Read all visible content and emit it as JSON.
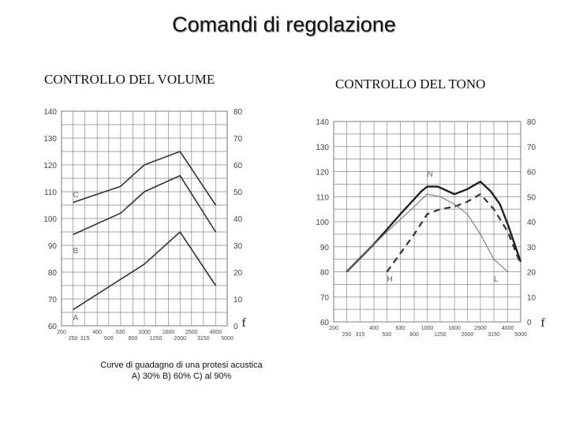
{
  "title": "Comandi di regolazione",
  "volume_heading": "CONTROLLO DEL VOLUME",
  "tone_heading": "CONTROLLO DEL TONO",
  "caption_line1": "Curve di guadagno di una protesi acustica",
  "caption_line2": "A) 30% B) 60% C) al 90%",
  "chart_data": [
    {
      "type": "line",
      "id": "volume",
      "title": "CONTROLLO DEL VOLUME",
      "xlabel": "f",
      "ylabel": "",
      "x_scale": "log",
      "x_ticks_top": [
        "200",
        "400",
        "630",
        "1000",
        "1600",
        "2500",
        "4000"
      ],
      "x_ticks_bottom": [
        "250",
        "315",
        "500",
        "800",
        "1250",
        "2000",
        "3150",
        "5000"
      ],
      "y_left_ticks": [
        "60",
        "70",
        "80",
        "90",
        "100",
        "110",
        "120",
        "130",
        "140"
      ],
      "y_right_ticks": [
        "0",
        "10",
        "20",
        "30",
        "40",
        "50",
        "60",
        "70",
        "80"
      ],
      "ylim": [
        60,
        140
      ],
      "grid": true,
      "series": [
        {
          "name": "A",
          "x": [
            250,
            1000,
            2000,
            4000
          ],
          "values": [
            66,
            83,
            95,
            75
          ],
          "style": "solid",
          "label_at": [
            250,
            62
          ]
        },
        {
          "name": "B",
          "x": [
            250,
            630,
            1000,
            2000,
            4000
          ],
          "values": [
            94,
            102,
            110,
            116,
            95
          ],
          "style": "solid",
          "label_at": [
            250,
            87
          ]
        },
        {
          "name": "C",
          "x": [
            250,
            630,
            1000,
            2000,
            4000
          ],
          "values": [
            106,
            112,
            120,
            125,
            105
          ],
          "style": "solid",
          "label_at": [
            250,
            108
          ]
        }
      ]
    },
    {
      "type": "line",
      "id": "tone",
      "title": "CONTROLLO DEL TONO",
      "xlabel": "f",
      "ylabel": "",
      "x_scale": "log",
      "x_ticks_top": [
        "200",
        "400",
        "630",
        "1000",
        "1600",
        "2500",
        "4000"
      ],
      "x_ticks_bottom": [
        "250",
        "315",
        "500",
        "800",
        "1250",
        "2000",
        "3150",
        "5000"
      ],
      "y_left_ticks": [
        "60",
        "70",
        "80",
        "90",
        "100",
        "110",
        "120",
        "130",
        "140"
      ],
      "y_right_ticks": [
        "0",
        "10",
        "20",
        "30",
        "40",
        "50",
        "60",
        "70",
        "80"
      ],
      "ylim": [
        60,
        140
      ],
      "grid": true,
      "series": [
        {
          "name": "N",
          "x": [
            250,
            400,
            630,
            900,
            1000,
            1200,
            1600,
            2000,
            2500,
            3000,
            3500,
            4000,
            5000
          ],
          "values": [
            80,
            91,
            103,
            112,
            114,
            114,
            111,
            113,
            116,
            112,
            107,
            99,
            84
          ],
          "style": "solid-thick",
          "label_at": [
            1000,
            118
          ]
        },
        {
          "name": "H",
          "x": [
            500,
            800,
            1000,
            1250,
            1600,
            2000,
            2500,
            3150,
            4000,
            5000
          ],
          "values": [
            80,
            95,
            103,
            105,
            106,
            108,
            111,
            105,
            96,
            83
          ],
          "style": "dashed",
          "label_at": [
            500,
            76
          ]
        },
        {
          "name": "L",
          "x": [
            250,
            500,
            800,
            1000,
            1250,
            1600,
            2000,
            2500,
            3150,
            4000
          ],
          "values": [
            80,
            96,
            106,
            111,
            110,
            107,
            103,
            95,
            85,
            80
          ],
          "style": "thin",
          "label_at": [
            3150,
            76
          ]
        }
      ]
    }
  ]
}
